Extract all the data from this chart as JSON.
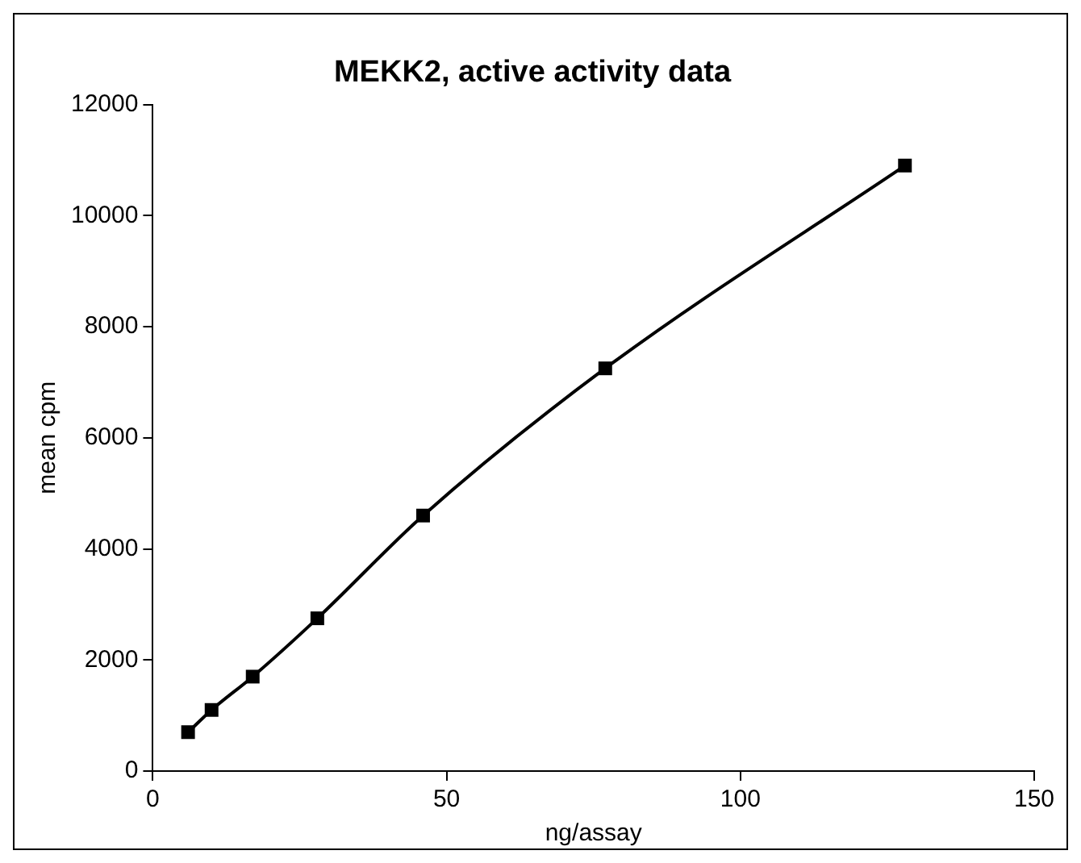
{
  "chart_data": {
    "type": "line",
    "title": "MEKK2, active activity data",
    "xlabel": "ng/assay",
    "ylabel": "mean cpm",
    "x": [
      6,
      10,
      17,
      28,
      46,
      77,
      128
    ],
    "series": [
      {
        "color": "#000000",
        "values": [
          700,
          1100,
          1700,
          2750,
          4600,
          7250,
          10900
        ]
      }
    ],
    "xlim": [
      0,
      150
    ],
    "xticks": [
      0,
      50,
      100,
      150
    ],
    "ylim": [
      0,
      12000
    ],
    "yticks": [
      0,
      2000,
      4000,
      6000,
      8000,
      10000,
      12000
    ],
    "grid": false,
    "legend": false,
    "marker": "square",
    "line_style": "solid"
  }
}
